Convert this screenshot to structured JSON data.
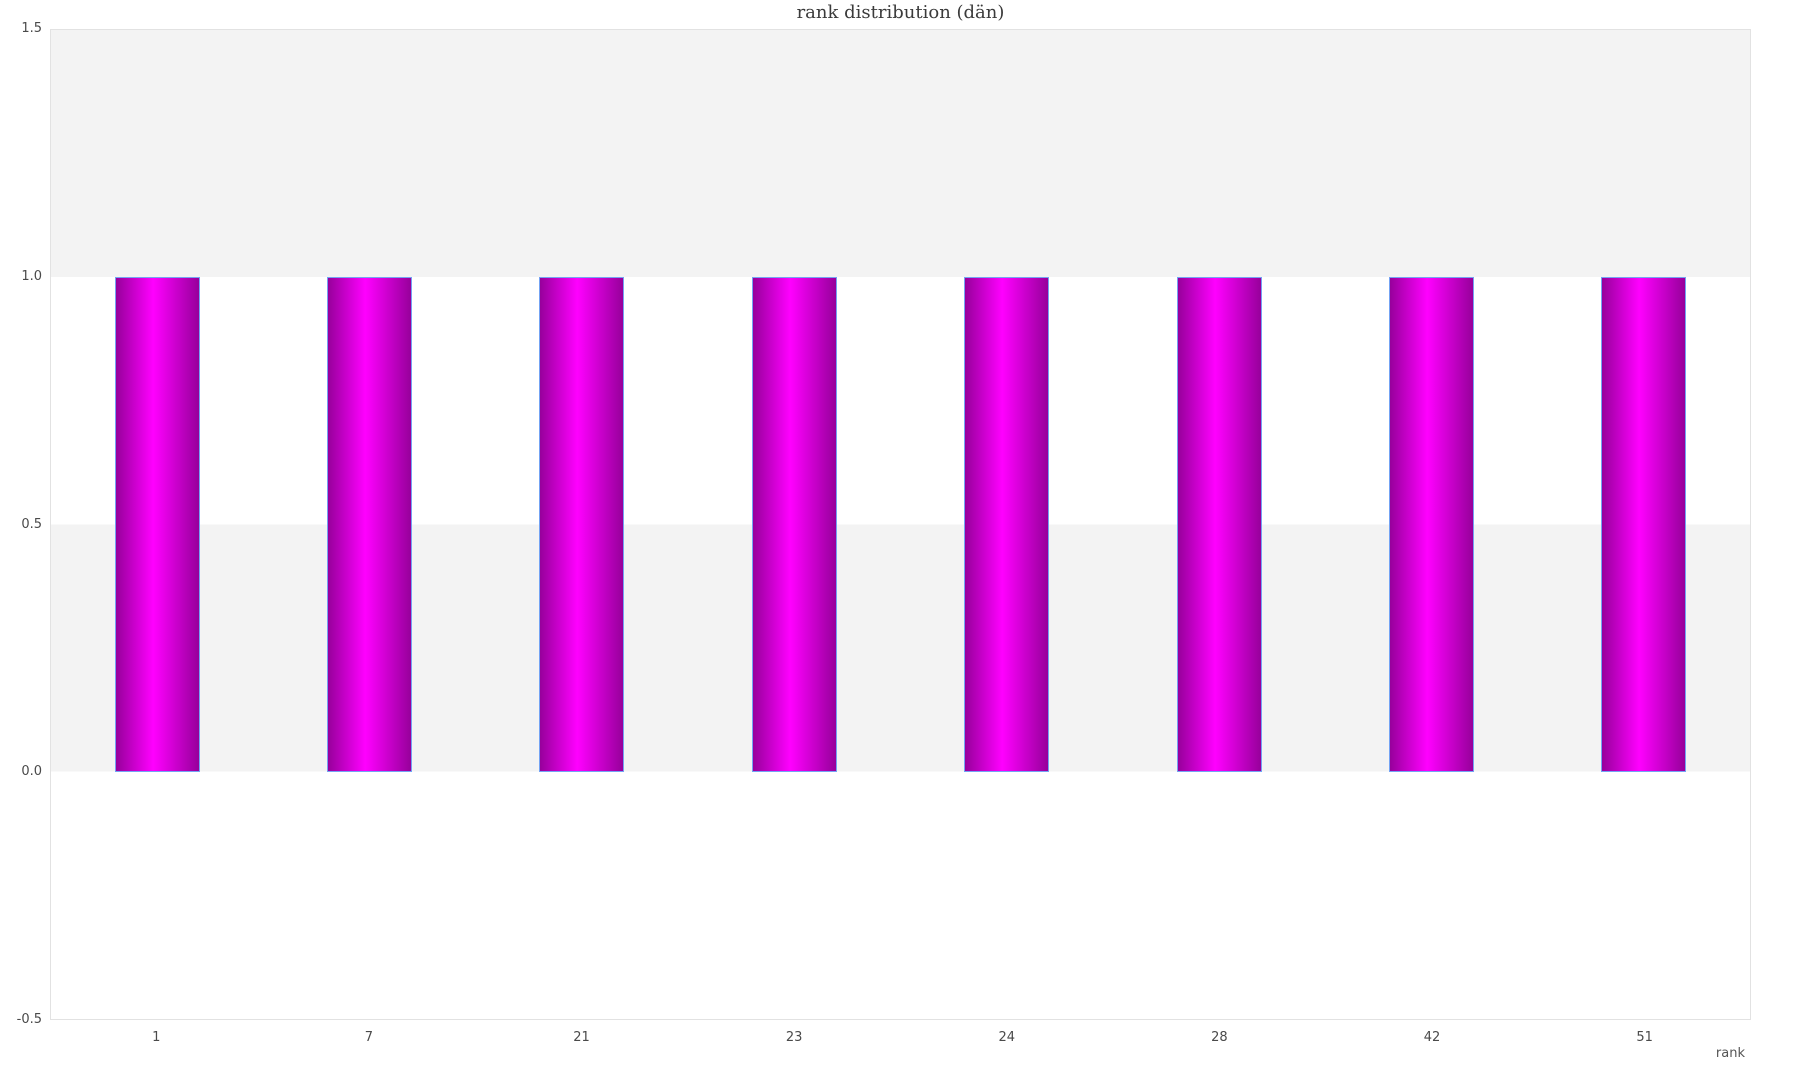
{
  "chart_data": {
    "type": "bar",
    "title": "rank distribution (dän)",
    "xlabel": "rank",
    "ylabel": "",
    "categories": [
      "1",
      "7",
      "21",
      "23",
      "24",
      "28",
      "42",
      "51"
    ],
    "values": [
      1.0,
      1.0,
      1.0,
      1.0,
      1.0,
      1.0,
      1.0,
      1.0
    ],
    "ylim": [
      -0.5,
      1.5
    ],
    "yticks": [
      {
        "value": 1.5,
        "label": "1.5"
      },
      {
        "value": 1.0,
        "label": "1.0"
      },
      {
        "value": 0.5,
        "label": "0.5"
      },
      {
        "value": 0.0,
        "label": "0.0"
      },
      {
        "value": -0.5,
        "label": "-0.5"
      }
    ],
    "grid": "horizontal alternating bands",
    "legend": "none",
    "colors": {
      "bar_gradient_edge": "#97009b",
      "bar_gradient_center": "#ff00ff",
      "bar_border": "#74a3f3",
      "band_fill": "#f3f3f3",
      "band_alt_fill": "#ffffff",
      "plot_border": "#e2e2e2",
      "tick_text": "#4a4a4a",
      "axis_label_text": "#555555",
      "title_text": "#3b3b3b"
    }
  }
}
